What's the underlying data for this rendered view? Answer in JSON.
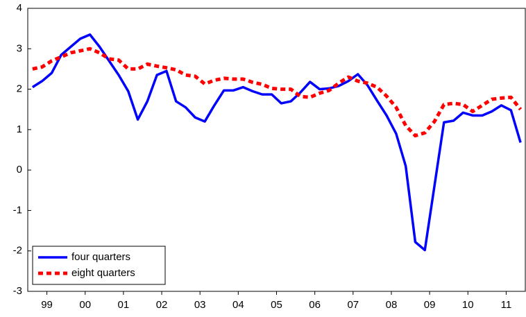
{
  "chart_data": {
    "type": "line",
    "x": [
      1999.125,
      1999.375,
      1999.625,
      1999.875,
      2000.125,
      2000.375,
      2000.625,
      2000.875,
      2001.125,
      2001.375,
      2001.625,
      2001.875,
      2002.125,
      2002.375,
      2002.625,
      2002.875,
      2003.125,
      2003.375,
      2003.625,
      2003.875,
      2004.125,
      2004.375,
      2004.625,
      2004.875,
      2005.125,
      2005.375,
      2005.625,
      2005.875,
      2006.125,
      2006.375,
      2006.625,
      2006.875,
      2007.125,
      2007.375,
      2007.625,
      2007.875,
      2008.125,
      2008.375,
      2008.625,
      2008.875,
      2009.125,
      2009.375,
      2009.625,
      2009.875,
      2010.125,
      2010.375,
      2010.625,
      2010.875,
      2011.125,
      2011.375,
      2011.625,
      2011.875
    ],
    "series": [
      {
        "name": "four quarters",
        "color": "#0000ff",
        "dashed": false,
        "values": [
          2.05,
          2.2,
          2.4,
          2.85,
          3.05,
          3.25,
          3.35,
          3.05,
          2.7,
          2.35,
          1.95,
          1.25,
          1.7,
          2.35,
          2.45,
          1.7,
          1.55,
          1.3,
          1.2,
          1.6,
          1.97,
          1.97,
          2.05,
          1.95,
          1.87,
          1.87,
          1.65,
          1.7,
          1.92,
          2.18,
          2.0,
          2.02,
          2.08,
          2.2,
          2.37,
          2.1,
          1.72,
          1.35,
          0.9,
          0.1,
          -1.78,
          -1.98,
          -0.4,
          1.18,
          1.22,
          1.42,
          1.35,
          1.35,
          1.45,
          1.6,
          1.48,
          0.68
        ]
      },
      {
        "name": "eight quarters",
        "color": "#ff0000",
        "dashed": true,
        "values": [
          2.5,
          2.55,
          2.7,
          2.8,
          2.9,
          2.95,
          3.0,
          2.9,
          2.75,
          2.72,
          2.5,
          2.5,
          2.62,
          2.57,
          2.53,
          2.48,
          2.35,
          2.32,
          2.13,
          2.22,
          2.27,
          2.25,
          2.25,
          2.17,
          2.12,
          2.02,
          2.0,
          2.0,
          1.82,
          1.8,
          1.9,
          1.97,
          2.15,
          2.3,
          2.2,
          2.15,
          2.05,
          1.83,
          1.55,
          1.1,
          0.85,
          0.92,
          1.2,
          1.62,
          1.65,
          1.62,
          1.45,
          1.6,
          1.75,
          1.78,
          1.8,
          1.5
        ]
      }
    ],
    "xlim": [
      1999,
      2012
    ],
    "xticks": [
      {
        "value": 1999.5,
        "label": "99"
      },
      {
        "value": 2000.5,
        "label": "00"
      },
      {
        "value": 2001.5,
        "label": "01"
      },
      {
        "value": 2002.5,
        "label": "02"
      },
      {
        "value": 2003.5,
        "label": "03"
      },
      {
        "value": 2004.5,
        "label": "04"
      },
      {
        "value": 2005.5,
        "label": "05"
      },
      {
        "value": 2006.5,
        "label": "06"
      },
      {
        "value": 2007.5,
        "label": "07"
      },
      {
        "value": 2008.5,
        "label": "08"
      },
      {
        "value": 2009.5,
        "label": "09"
      },
      {
        "value": 2010.5,
        "label": "10"
      },
      {
        "value": 2011.5,
        "label": "11"
      }
    ],
    "ylim": [
      -3,
      4
    ],
    "yticks": [
      -3,
      -2,
      -1,
      0,
      1,
      2,
      3,
      4
    ],
    "grid": false,
    "legend": "lower left"
  }
}
